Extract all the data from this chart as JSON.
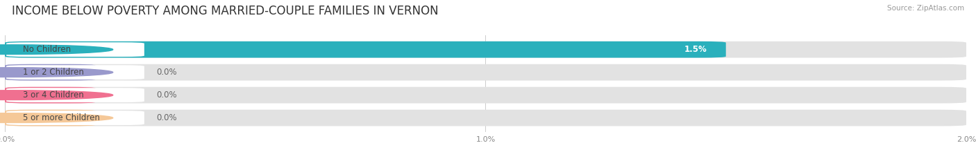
{
  "title": "INCOME BELOW POVERTY AMONG MARRIED-COUPLE FAMILIES IN VERNON",
  "source": "Source: ZipAtlas.com",
  "categories": [
    "No Children",
    "1 or 2 Children",
    "3 or 4 Children",
    "5 or more Children"
  ],
  "values": [
    1.5,
    0.0,
    0.0,
    0.0
  ],
  "bar_colors": [
    "#2ab0bc",
    "#9999cc",
    "#f07090",
    "#f5c898"
  ],
  "xlim": [
    0,
    2.0
  ],
  "xticks": [
    0.0,
    1.0,
    2.0
  ],
  "xtick_labels": [
    "0.0%",
    "1.0%",
    "2.0%"
  ],
  "bar_height": 0.72,
  "background_color": "#ffffff",
  "bar_bg_color": "#e2e2e2",
  "title_fontsize": 12,
  "label_fontsize": 8.5,
  "value_fontsize": 8.5
}
